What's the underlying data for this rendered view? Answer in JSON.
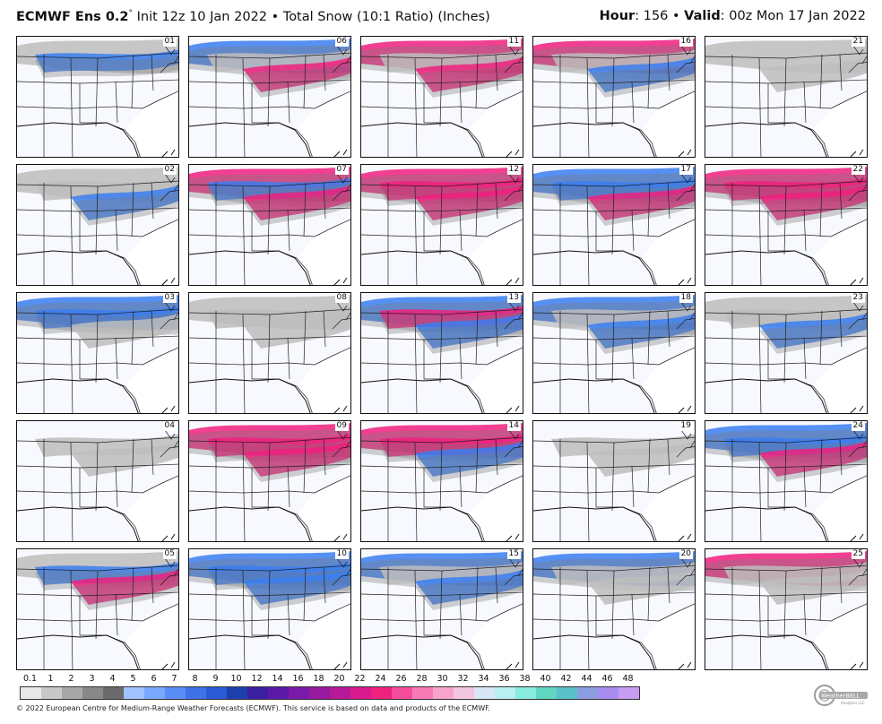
{
  "header": {
    "model": "ECMWF Ens 0.2",
    "degree": "°",
    "init": "Init 12z 10 Jan 2022",
    "bullet": "•",
    "product": "Total Snow (10:1 Ratio) (Inches)",
    "hour_label": "Hour",
    "hour_value": ": 156",
    "valid_label": "Valid",
    "valid_value": ": 00z Mon 17 Jan 2022"
  },
  "members": [
    "01",
    "06",
    "11",
    "16",
    "21",
    "02",
    "07",
    "12",
    "17",
    "22",
    "03",
    "08",
    "13",
    "18",
    "23",
    "04",
    "09",
    "14",
    "19",
    "24",
    "05",
    "10",
    "15",
    "20",
    "25"
  ],
  "member_intensity": {
    "01": [
      1,
      2,
      0
    ],
    "06": [
      2,
      1,
      3
    ],
    "11": [
      3,
      1,
      3
    ],
    "16": [
      3,
      1,
      2
    ],
    "21": [
      1,
      0,
      1
    ],
    "02": [
      1,
      1,
      2
    ],
    "07": [
      3,
      2,
      3
    ],
    "12": [
      3,
      3,
      3
    ],
    "17": [
      2,
      2,
      3
    ],
    "22": [
      3,
      3,
      3
    ],
    "03": [
      2,
      2,
      1
    ],
    "08": [
      1,
      1,
      1
    ],
    "13": [
      2,
      3,
      2
    ],
    "18": [
      2,
      1,
      2
    ],
    "23": [
      1,
      1,
      2
    ],
    "04": [
      0,
      1,
      1
    ],
    "09": [
      3,
      3,
      3
    ],
    "14": [
      3,
      3,
      2
    ],
    "19": [
      0,
      1,
      1
    ],
    "24": [
      2,
      2,
      3
    ],
    "05": [
      1,
      2,
      3
    ],
    "10": [
      2,
      2,
      2
    ],
    "15": [
      2,
      1,
      2
    ],
    "20": [
      2,
      1,
      1
    ],
    "25": [
      3,
      1,
      1
    ]
  },
  "colorbar": {
    "labels": [
      "0.1",
      "1",
      "2",
      "3",
      "4",
      "5",
      "6",
      "7",
      "8",
      "9",
      "10",
      "12",
      "14",
      "16",
      "18",
      "20",
      "22",
      "24",
      "26",
      "28",
      "30",
      "32",
      "34",
      "36",
      "38",
      "40",
      "42",
      "44",
      "46",
      "48"
    ],
    "colors": [
      "#e8e8e8",
      "#c8c8c8",
      "#a8a8a8",
      "#888888",
      "#6a6a6a",
      "#9fc3ff",
      "#78a8ff",
      "#5a8cf5",
      "#3f72e8",
      "#2a5ad6",
      "#1e3fae",
      "#3b1fa0",
      "#5a1aa6",
      "#7a1aa8",
      "#981aa0",
      "#b8189a",
      "#d81a8e",
      "#f0207e",
      "#f54d9a",
      "#f77ab5",
      "#f7a3cc",
      "#f2c6e0",
      "#d8e6f6",
      "#b8f0f0",
      "#88ecdc",
      "#60d6c0",
      "#5ac0c8",
      "#8c9ce0",
      "#a88cf0",
      "#c79cf5"
    ]
  },
  "footer": "© 2022 European Centre for Medium-Range Weather Forecasts (ECMWF). This service is based on data and products of the ECMWF.",
  "logo": {
    "text": "WeatherBELL",
    "subtext": "Analytics LLC"
  },
  "colors": {
    "land": "#f7f9fe",
    "snow_light": "#bdbdbd",
    "snow_med": "#7a7a7a",
    "snow_blue": "#3a7ef0",
    "snow_purple": "#5b2bb0",
    "snow_pink": "#f0207e"
  }
}
